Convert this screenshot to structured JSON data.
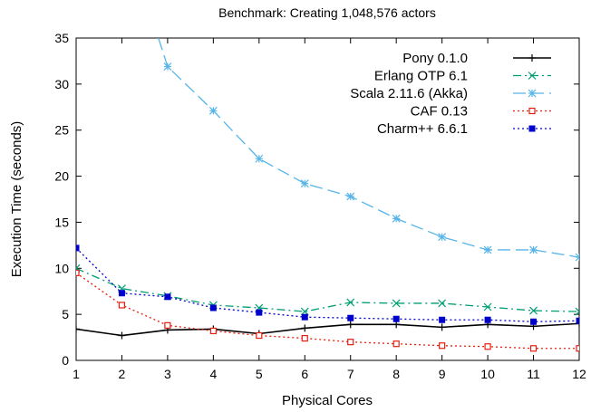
{
  "chart_data": {
    "type": "line",
    "title": "Benchmark: Creating 1,048,576 actors",
    "xlabel": "Physical Cores",
    "ylabel": "Execution Time (seconds)",
    "xlim": [
      1,
      12
    ],
    "ylim": [
      0,
      35
    ],
    "x_ticks": [
      1,
      2,
      3,
      4,
      5,
      6,
      7,
      8,
      9,
      10,
      11,
      12
    ],
    "y_ticks": [
      0,
      5,
      10,
      15,
      20,
      25,
      30,
      35
    ],
    "grid": false,
    "legend_position": "top-right",
    "x": [
      1,
      2,
      3,
      4,
      5,
      6,
      7,
      8,
      9,
      10,
      11,
      12
    ],
    "series": [
      {
        "name": "Pony 0.1.0",
        "color": "#000000",
        "dash": "solid",
        "marker": "plus",
        "values": [
          3.4,
          2.7,
          3.3,
          3.4,
          2.9,
          3.5,
          3.9,
          3.9,
          3.6,
          3.9,
          3.7,
          4.0
        ]
      },
      {
        "name": "Erlang OTP 6.1",
        "color": "#009e73",
        "dash": "dashdot",
        "marker": "x",
        "values": [
          10.0,
          7.8,
          7.0,
          6.0,
          5.7,
          5.3,
          6.3,
          6.2,
          6.2,
          5.8,
          5.4,
          5.3
        ]
      },
      {
        "name": "Scala 2.11.6 (Akka)",
        "color": "#56b4e9",
        "dash": "longdash",
        "marker": "star",
        "values": [
          null,
          null,
          31.9,
          27.1,
          21.9,
          19.2,
          17.8,
          15.4,
          13.4,
          12.0,
          12.0,
          11.2
        ]
      },
      {
        "name": "CAF 0.13",
        "color": "#e51e10",
        "dash": "dotted",
        "marker": "open-square",
        "values": [
          9.5,
          6.0,
          3.8,
          3.2,
          2.7,
          2.4,
          2.0,
          1.8,
          1.6,
          1.5,
          1.3,
          1.3
        ]
      },
      {
        "name": "Charm++ 6.6.1",
        "color": "#0000cc",
        "dash": "dotted",
        "marker": "filled-square",
        "values": [
          12.2,
          7.3,
          6.9,
          5.7,
          5.2,
          4.7,
          4.6,
          4.5,
          4.4,
          4.4,
          4.2,
          4.3
        ]
      }
    ],
    "scala_offscreen_start": {
      "x": 2.8,
      "y": 35
    }
  }
}
